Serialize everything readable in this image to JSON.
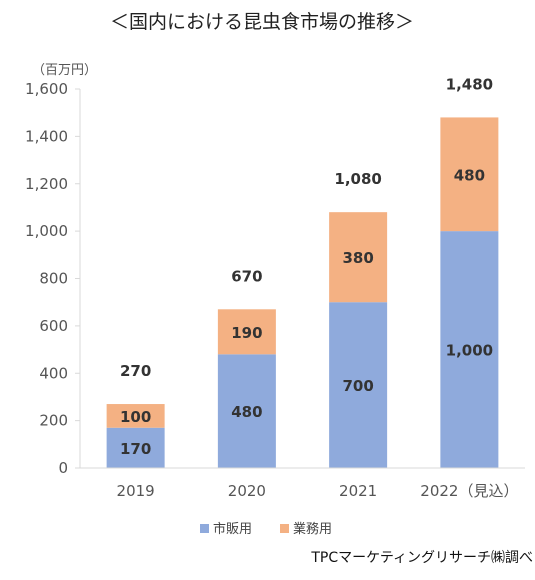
{
  "chart_data": {
    "type": "bar",
    "stacked": true,
    "title": "＜国内における昆虫食市場の推移＞",
    "unit_label": "（百万円）",
    "categories": [
      "2019",
      "2020",
      "2021",
      "2022（見込）"
    ],
    "series": [
      {
        "name": "市販用",
        "values": [
          170,
          480,
          700,
          1000
        ],
        "value_labels": [
          "170",
          "480",
          "700",
          "1,000"
        ],
        "color": "#8faadc"
      },
      {
        "name": "業務用",
        "values": [
          100,
          190,
          380,
          480
        ],
        "value_labels": [
          "100",
          "190",
          "380",
          "480"
        ],
        "color": "#f4b183"
      }
    ],
    "totals": [
      270,
      670,
      1080,
      1480
    ],
    "total_labels": [
      "270",
      "670",
      "1,080",
      "1,480"
    ],
    "ylim": [
      0,
      1600
    ],
    "yticks": [
      0,
      200,
      400,
      600,
      800,
      1000,
      1200,
      1400,
      1600
    ],
    "ytick_labels": [
      "0",
      "200",
      "400",
      "600",
      "800",
      "1,000",
      "1,200",
      "1,400",
      "1,600"
    ],
    "grid": false,
    "legend_position": "bottom",
    "source": "TPCマーケティングリサーチ㈱調べ"
  }
}
